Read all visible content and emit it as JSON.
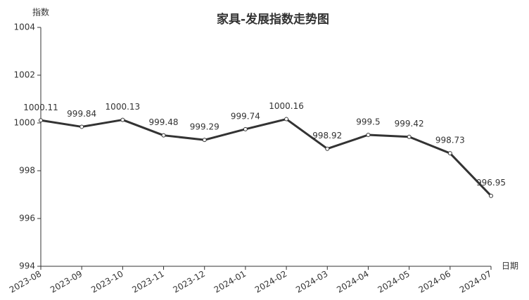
{
  "chart_data": {
    "type": "line",
    "title": "家具-发展指数走势图",
    "y_label": "指数",
    "x_label": "日期",
    "categories": [
      "2023-08",
      "2023-09",
      "2023-10",
      "2023-11",
      "2023-12",
      "2024-01",
      "2024-02",
      "2024-03",
      "2024-04",
      "2024-05",
      "2024-06",
      "2024-07"
    ],
    "series": [
      {
        "name": "发展指数",
        "color": "#333333",
        "values": [
          1000.11,
          999.84,
          1000.13,
          999.48,
          999.29,
          999.74,
          1000.16,
          998.92,
          999.5,
          999.42,
          998.73,
          996.95
        ]
      }
    ],
    "ylim": [
      994,
      1004
    ],
    "yticks": [
      994,
      996,
      998,
      1000,
      1002,
      1004
    ],
    "grid": false
  }
}
